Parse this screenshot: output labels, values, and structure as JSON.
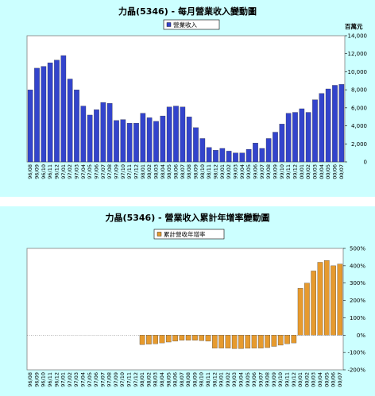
{
  "chart_data": [
    {
      "type": "bar",
      "title": "力晶(5346) - 每月營業收入變動圖",
      "unit_label": "百萬元",
      "series": [
        {
          "name": "營業收入",
          "color": "#3344cc"
        }
      ],
      "categories": [
        "96/08",
        "96/09",
        "96/10",
        "96/11",
        "96/12",
        "97/01",
        "97/02",
        "97/03",
        "97/04",
        "97/05",
        "97/06",
        "97/07",
        "97/08",
        "97/09",
        "97/10",
        "97/11",
        "97/12",
        "98/01",
        "98/02",
        "98/03",
        "98/04",
        "98/05",
        "98/06",
        "98/07",
        "98/08",
        "98/09",
        "98/10",
        "98/11",
        "98/12",
        "99/01",
        "99/02",
        "99/03",
        "99/04",
        "99/05",
        "99/06",
        "99/07",
        "99/08",
        "99/09",
        "99/10",
        "99/11",
        "99/12",
        "00/01",
        "00/02",
        "00/03",
        "00/04",
        "00/05",
        "00/06",
        "00/07"
      ],
      "tick_labels": [
        "96/08",
        "96/09",
        "96/10",
        "96/11",
        "96/12",
        "97/01",
        "97/02",
        "97/03",
        "97/04",
        "97/05",
        "97/06",
        "97/07",
        "97/08",
        "97/09",
        "97/10",
        "97/11",
        "97/12",
        "98/01",
        "98/02",
        "98/03",
        "98/04",
        "98/05",
        "98/06",
        "98/07",
        "98/08",
        "98/09",
        "98/10",
        "98/11",
        "98/12",
        "99/01",
        "99/02",
        "99/03",
        "99/04",
        "99/05",
        "99/06",
        "99/07",
        "99/08",
        "99/09",
        "99/10",
        "99/11",
        "99/12",
        "00/01",
        "00/02",
        "00/03",
        "00/04",
        "00/05",
        "00/06",
        "00/07"
      ],
      "values": [
        8000,
        10400,
        10600,
        11000,
        11300,
        11800,
        9200,
        8000,
        6200,
        5200,
        5800,
        6600,
        6500,
        4600,
        4700,
        4300,
        4300,
        5400,
        4900,
        4500,
        5100,
        6100,
        6200,
        6100,
        5000,
        3800,
        2600,
        1600,
        1300,
        1500,
        1200,
        1000,
        1000,
        1400,
        2100,
        1500,
        2600,
        3300,
        4200,
        5400,
        5500,
        5900,
        5500,
        6900,
        7600,
        8100,
        8500,
        8600
      ],
      "ylim": [
        0,
        14000
      ],
      "yticks": [
        "0",
        "2,000",
        "4,000",
        "6,000",
        "8,000",
        "10,000",
        "12,000",
        "14,000"
      ],
      "ytick_values": [
        0,
        2000,
        4000,
        6000,
        8000,
        10000,
        12000,
        14000
      ],
      "legend_position": "top-center",
      "grid": false
    },
    {
      "type": "bar",
      "title": "力晶(5346) - 營業收入累計年增率變動圖",
      "series": [
        {
          "name": "累計營收年增率",
          "color": "#e69a2e"
        }
      ],
      "categories": [
        "96/08",
        "96/09",
        "96/10",
        "96/11",
        "96/12",
        "97/01",
        "97/02",
        "97/03",
        "97/04",
        "97/05",
        "97/06",
        "97/07",
        "97/08",
        "97/09",
        "97/10",
        "97/11",
        "97/12",
        "98/01",
        "98/02",
        "98/03",
        "98/04",
        "98/05",
        "98/06",
        "98/07",
        "98/08",
        "98/09",
        "98/10",
        "98/11",
        "98/12",
        "99/01",
        "99/02",
        "99/03",
        "99/04",
        "99/05",
        "99/06",
        "99/07",
        "99/08",
        "99/09",
        "99/10",
        "99/11",
        "99/12",
        "00/01",
        "00/02",
        "00/03",
        "00/04",
        "00/05",
        "00/06",
        "00/07"
      ],
      "tick_labels": [
        "96/08",
        "96/09",
        "96/10",
        "96/11",
        "96/12",
        "97/01",
        "97/02",
        "97/03",
        "97/04",
        "97/05",
        "97/06",
        "97/07",
        "97/08",
        "97/09",
        "97/10",
        "97/11",
        "97/12",
        "98/01",
        "98/02",
        "98/03",
        "98/04",
        "98/05",
        "98/06",
        "98/07",
        "98/08",
        "98/09",
        "98/10",
        "98/11",
        "98/12",
        "99/01",
        "99/02",
        "99/03",
        "99/04",
        "99/05",
        "99/06",
        "99/07",
        "99/08",
        "99/09",
        "99/10",
        "99/11",
        "99/12",
        "00/01",
        "00/02",
        "00/03",
        "00/04",
        "00/05",
        "00/06",
        "00/07"
      ],
      "values": [
        0,
        0,
        0,
        0,
        0,
        0,
        0,
        0,
        0,
        0,
        0,
        0,
        0,
        0,
        0,
        0,
        0,
        -55,
        -52,
        -50,
        -45,
        -40,
        -35,
        -30,
        -30,
        -30,
        -32,
        -35,
        -75,
        -75,
        -75,
        -78,
        -78,
        -76,
        -75,
        -75,
        -72,
        -65,
        -58,
        -50,
        -45,
        270,
        300,
        370,
        420,
        430,
        400,
        410
      ],
      "ylim": [
        -200,
        500
      ],
      "yticks": [
        "-200%",
        "-100%",
        "0%",
        "100%",
        "200%",
        "300%",
        "400%",
        "500%"
      ],
      "ytick_values": [
        -200,
        -100,
        0,
        100,
        200,
        300,
        400,
        500
      ],
      "legend_position": "top-center",
      "grid": false
    }
  ]
}
